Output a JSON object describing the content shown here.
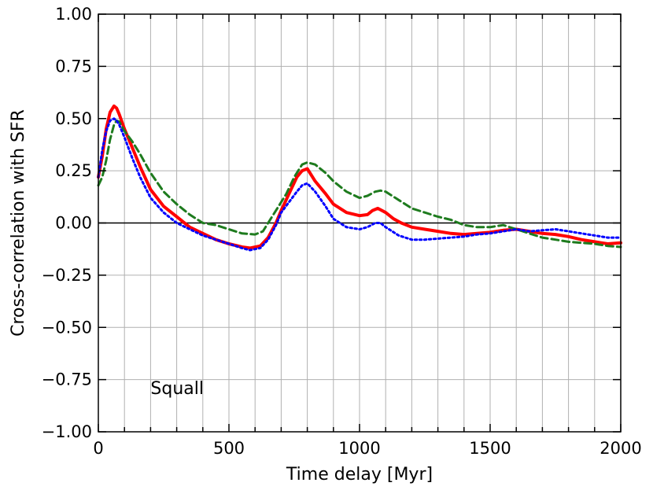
{
  "chart_data": {
    "type": "line",
    "title": "",
    "xlabel": "Time delay [Myr]",
    "ylabel": "Cross-correlation with SFR",
    "xlim": [
      0,
      2000
    ],
    "ylim": [
      -1.0,
      1.0
    ],
    "xticks": [
      0,
      500,
      1000,
      1500,
      2000
    ],
    "xtick_labels": [
      "0",
      "500",
      "1000",
      "1500",
      "2000"
    ],
    "yticks": [
      -1.0,
      -0.75,
      -0.5,
      -0.25,
      0.0,
      0.25,
      0.5,
      0.75,
      1.0
    ],
    "ytick_labels": [
      "−1.00",
      "−0.75",
      "−0.50",
      "−0.25",
      "0.00",
      "0.25",
      "0.50",
      "0.75",
      "1.00"
    ],
    "grid": true,
    "grid_x_step": 100,
    "zero_line": true,
    "annotation": "Squall",
    "series": [
      {
        "style": "solid",
        "color": "#ff0000",
        "x": [
          0,
          15,
          30,
          45,
          60,
          70,
          80,
          100,
          130,
          160,
          200,
          250,
          300,
          350,
          400,
          450,
          500,
          550,
          580,
          620,
          650,
          680,
          700,
          730,
          760,
          780,
          800,
          830,
          870,
          900,
          950,
          1000,
          1030,
          1050,
          1070,
          1100,
          1130,
          1160,
          1200,
          1250,
          1300,
          1350,
          1400,
          1450,
          1500,
          1550,
          1600,
          1650,
          1700,
          1750,
          1800,
          1850,
          1900,
          1950,
          2000
        ],
        "y": [
          0.22,
          0.32,
          0.45,
          0.53,
          0.56,
          0.55,
          0.52,
          0.45,
          0.36,
          0.27,
          0.16,
          0.08,
          0.03,
          -0.02,
          -0.05,
          -0.08,
          -0.1,
          -0.115,
          -0.12,
          -0.11,
          -0.07,
          0.0,
          0.06,
          0.14,
          0.22,
          0.25,
          0.26,
          0.2,
          0.14,
          0.09,
          0.05,
          0.035,
          0.04,
          0.06,
          0.07,
          0.05,
          0.02,
          0.0,
          -0.02,
          -0.03,
          -0.04,
          -0.05,
          -0.055,
          -0.05,
          -0.045,
          -0.035,
          -0.03,
          -0.04,
          -0.05,
          -0.055,
          -0.065,
          -0.08,
          -0.09,
          -0.1,
          -0.095
        ]
      },
      {
        "style": "dashed",
        "color": "#1e7b1e",
        "x": [
          0,
          15,
          30,
          45,
          60,
          70,
          80,
          100,
          130,
          160,
          200,
          250,
          300,
          350,
          400,
          450,
          500,
          550,
          600,
          630,
          660,
          690,
          720,
          750,
          780,
          800,
          830,
          870,
          900,
          950,
          1000,
          1030,
          1060,
          1080,
          1100,
          1150,
          1200,
          1250,
          1300,
          1350,
          1400,
          1450,
          1500,
          1550,
          1600,
          1650,
          1700,
          1750,
          1800,
          1850,
          1900,
          1950,
          2000
        ],
        "y": [
          0.18,
          0.22,
          0.3,
          0.4,
          0.47,
          0.49,
          0.485,
          0.44,
          0.39,
          0.33,
          0.24,
          0.15,
          0.09,
          0.04,
          0.0,
          -0.01,
          -0.03,
          -0.05,
          -0.055,
          -0.04,
          0.02,
          0.08,
          0.14,
          0.22,
          0.28,
          0.29,
          0.28,
          0.24,
          0.2,
          0.15,
          0.12,
          0.13,
          0.15,
          0.155,
          0.15,
          0.11,
          0.07,
          0.05,
          0.03,
          0.015,
          -0.01,
          -0.02,
          -0.02,
          -0.01,
          -0.03,
          -0.05,
          -0.07,
          -0.08,
          -0.09,
          -0.095,
          -0.1,
          -0.11,
          -0.115
        ]
      },
      {
        "style": "dotted",
        "color": "#0000ff",
        "x": [
          0,
          15,
          30,
          45,
          60,
          70,
          80,
          100,
          130,
          160,
          200,
          250,
          300,
          350,
          400,
          450,
          500,
          550,
          580,
          620,
          650,
          680,
          700,
          730,
          760,
          780,
          800,
          830,
          870,
          900,
          950,
          1000,
          1030,
          1060,
          1080,
          1100,
          1150,
          1200,
          1250,
          1300,
          1350,
          1400,
          1450,
          1500,
          1550,
          1600,
          1650,
          1700,
          1750,
          1800,
          1850,
          1900,
          1950,
          2000
        ],
        "y": [
          0.22,
          0.35,
          0.44,
          0.49,
          0.5,
          0.49,
          0.47,
          0.41,
          0.31,
          0.22,
          0.12,
          0.05,
          0.0,
          -0.03,
          -0.06,
          -0.08,
          -0.1,
          -0.12,
          -0.13,
          -0.12,
          -0.08,
          -0.01,
          0.05,
          0.1,
          0.15,
          0.18,
          0.19,
          0.15,
          0.08,
          0.02,
          -0.02,
          -0.03,
          -0.02,
          0.0,
          0.0,
          -0.02,
          -0.06,
          -0.08,
          -0.08,
          -0.075,
          -0.07,
          -0.065,
          -0.055,
          -0.05,
          -0.04,
          -0.03,
          -0.04,
          -0.035,
          -0.03,
          -0.04,
          -0.05,
          -0.06,
          -0.07,
          -0.07
        ]
      }
    ]
  }
}
